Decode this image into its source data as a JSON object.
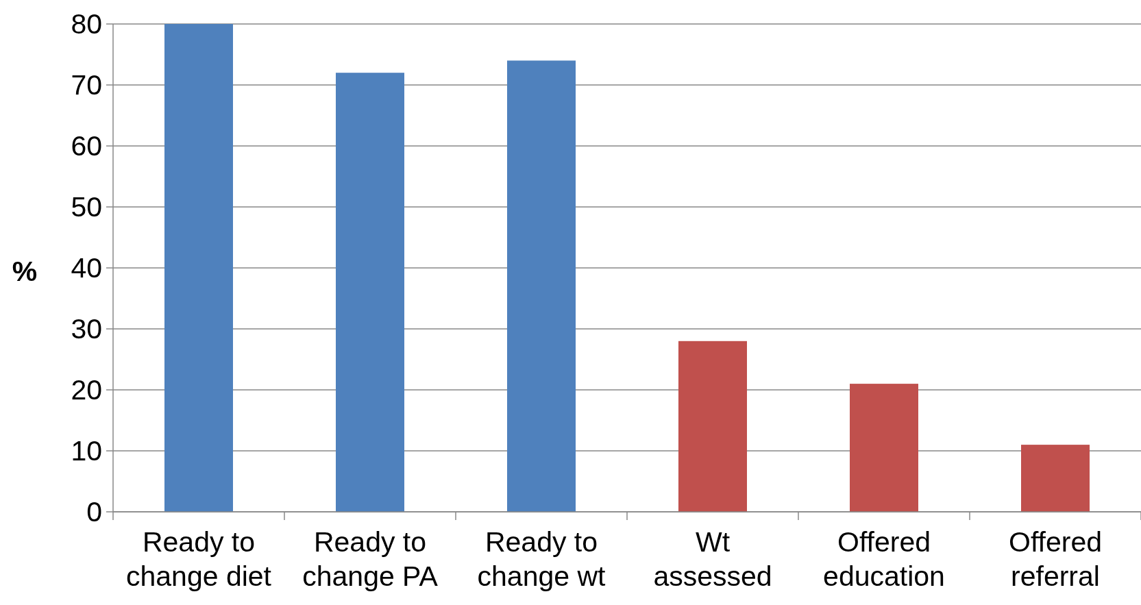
{
  "chart_data": {
    "type": "bar",
    "ylabel": "%",
    "categories": [
      "Ready to\nchange diet",
      "Ready to\nchange PA",
      "Ready to\nchange wt",
      "Wt\nassessed",
      "Offered\neducation",
      "Offered\nreferral"
    ],
    "values": [
      80,
      72,
      74,
      28,
      21,
      11
    ],
    "colors": [
      "#4f81bd",
      "#4f81bd",
      "#4f81bd",
      "#c0504d",
      "#c0504d",
      "#c0504d"
    ],
    "ylim": [
      0,
      80
    ],
    "yticks": [
      0,
      10,
      20,
      30,
      40,
      50,
      60,
      70,
      80
    ],
    "grid": "y"
  }
}
